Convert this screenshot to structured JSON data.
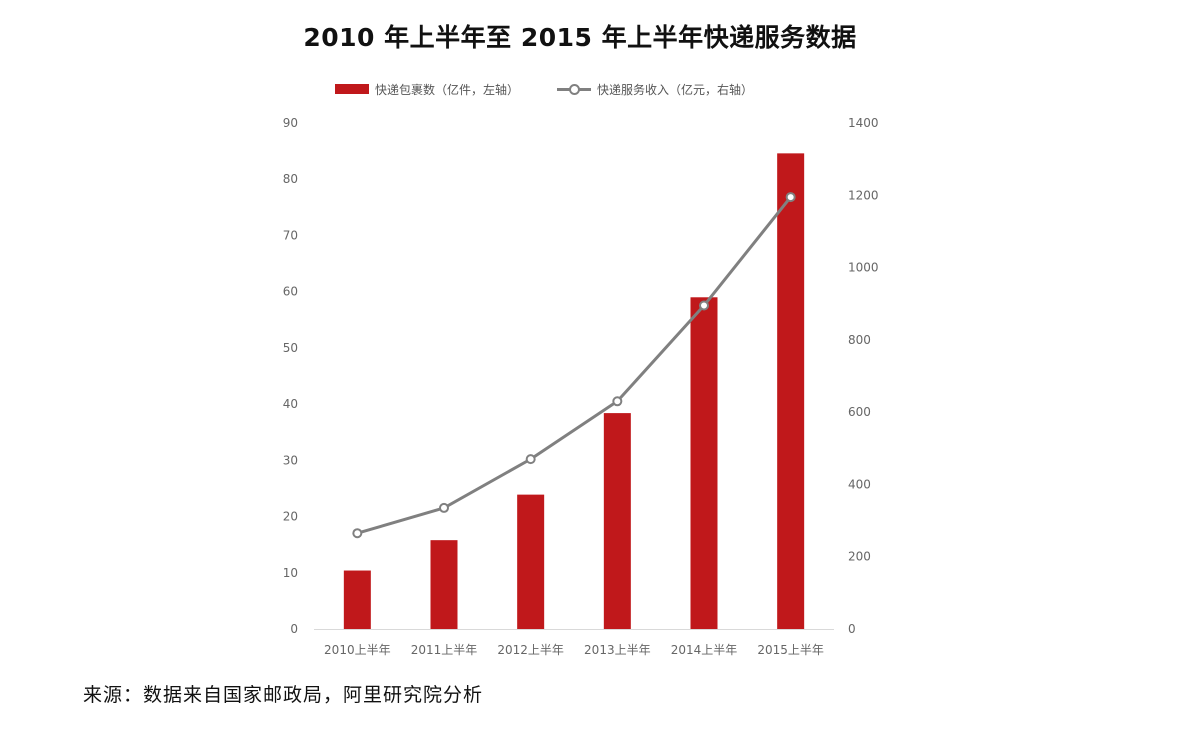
{
  "chart_data": {
    "type": "bar",
    "title": "2010 年上半年至 2015 年上半年快递服务数据",
    "categories": [
      "2010上半年",
      "2011上半年",
      "2012上半年",
      "2013上半年",
      "2014上半年",
      "2015上半年"
    ],
    "series": [
      {
        "name": "快递包裹数（亿件，左轴）",
        "type": "bar",
        "axis": "left",
        "color": "#C0181B",
        "values": [
          10.4,
          15.8,
          23.9,
          38.4,
          59.0,
          84.6
        ]
      },
      {
        "name": "快递服务收入（亿元，右轴）",
        "type": "line",
        "axis": "right",
        "color": "#808080",
        "values": [
          265,
          335,
          470,
          630,
          895,
          1195
        ]
      }
    ],
    "left_axis": {
      "ylim": [
        0,
        90
      ],
      "ticks": [
        "0",
        "10",
        "20",
        "30",
        "40",
        "50",
        "60",
        "70",
        "80",
        "90"
      ]
    },
    "right_axis": {
      "ylim": [
        0,
        1400
      ],
      "ticks": [
        "0",
        "200",
        "400",
        "600",
        "800",
        "1000",
        "1200",
        "1400"
      ]
    },
    "grid": false,
    "legend_position": "top"
  },
  "source_note": "来源：数据来自国家邮政局，阿里研究院分析"
}
